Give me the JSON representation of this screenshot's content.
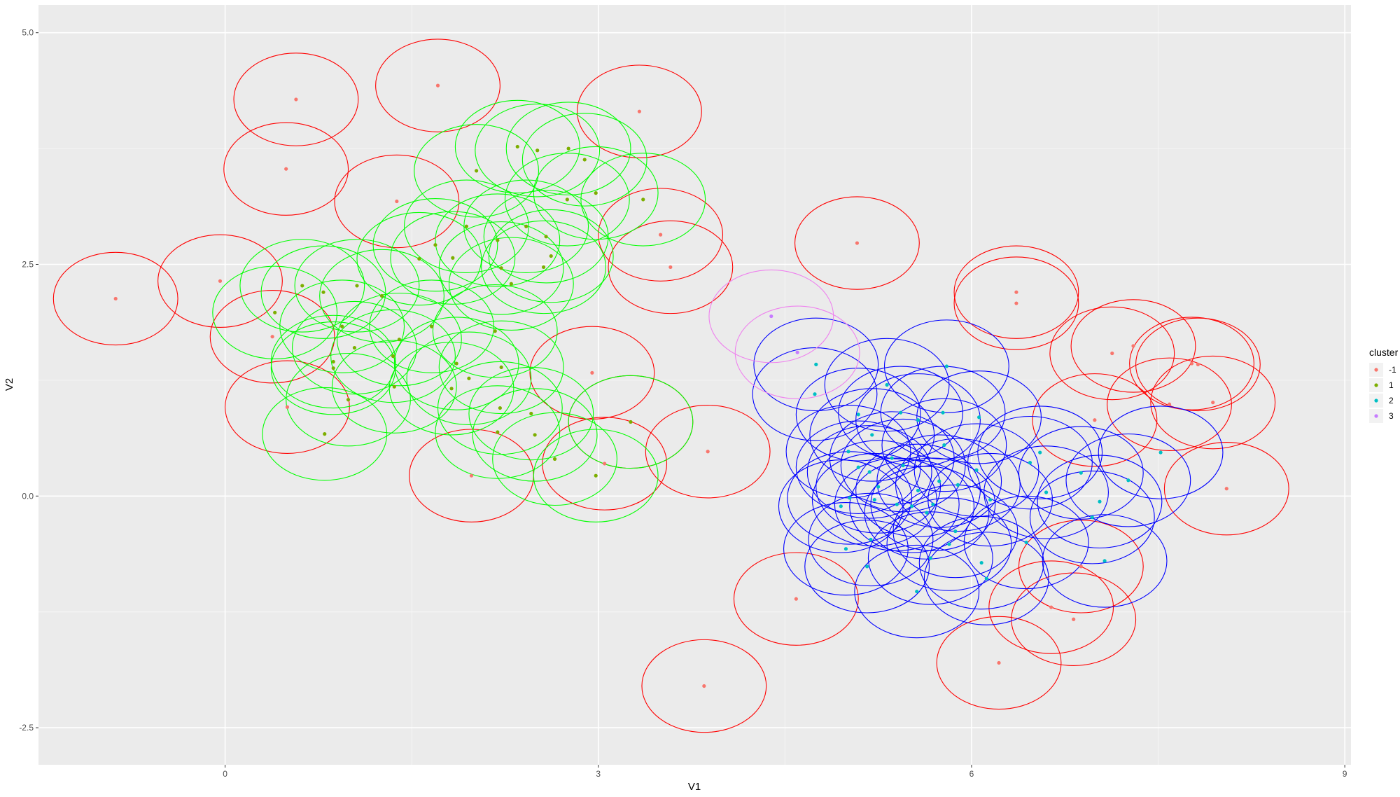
{
  "chart_data": {
    "type": "scatter",
    "title": "",
    "xlabel": "V1",
    "ylabel": "V2",
    "xlim": [
      -1.5,
      9.05
    ],
    "ylim": [
      -2.9,
      5.3
    ],
    "x_ticks": [
      0,
      3,
      6,
      9
    ],
    "x_tick_labels": [
      "0",
      "3",
      "6",
      "9"
    ],
    "y_ticks": [
      -2.5,
      0,
      2.5,
      5
    ],
    "y_tick_labels": [
      "-2.5",
      "0.0",
      "2.5",
      "5.0"
    ],
    "grid": true,
    "legend_position": "right",
    "legend_title": "cluster",
    "circle_radius_x": 0.5,
    "circle_radius_y": 0.5,
    "series": [
      {
        "name": "-1",
        "point_color": "#F8766D",
        "circle_color": "#FF0000",
        "points": [
          [
            -0.88,
            2.13
          ],
          [
            -0.04,
            2.32
          ],
          [
            0.57,
            4.28
          ],
          [
            0.49,
            3.53
          ],
          [
            1.71,
            4.43
          ],
          [
            1.38,
            3.18
          ],
          [
            3.33,
            4.15
          ],
          [
            0.38,
            1.72
          ],
          [
            0.5,
            0.96
          ],
          [
            3.5,
            2.82
          ],
          [
            3.58,
            2.47
          ],
          [
            2.95,
            1.33
          ],
          [
            3.26,
            0.8
          ],
          [
            3.05,
            0.35
          ],
          [
            1.98,
            0.22
          ],
          [
            3.88,
            0.48
          ],
          [
            5.08,
            2.73
          ],
          [
            6.36,
            2.2
          ],
          [
            6.36,
            2.08
          ],
          [
            7.13,
            1.54
          ],
          [
            7.3,
            1.62
          ],
          [
            7.82,
            1.42
          ],
          [
            7.77,
            1.43
          ],
          [
            7.59,
            0.99
          ],
          [
            7.94,
            1.01
          ],
          [
            6.99,
            0.82
          ],
          [
            8.05,
            0.08
          ],
          [
            4.59,
            -1.11
          ],
          [
            6.88,
            -0.76
          ],
          [
            6.64,
            -1.2
          ],
          [
            6.82,
            -1.33
          ],
          [
            6.22,
            -1.8
          ],
          [
            3.85,
            -2.05
          ]
        ]
      },
      {
        "name": "1",
        "point_color": "#7CAE00",
        "circle_color": "#00FF00",
        "points": [
          [
            2.35,
            3.77
          ],
          [
            2.51,
            3.73
          ],
          [
            2.76,
            3.75
          ],
          [
            2.89,
            3.63
          ],
          [
            2.02,
            3.51
          ],
          [
            2.98,
            3.27
          ],
          [
            2.75,
            3.2
          ],
          [
            3.36,
            3.2
          ],
          [
            1.94,
            2.91
          ],
          [
            2.42,
            2.91
          ],
          [
            2.19,
            2.76
          ],
          [
            2.58,
            2.8
          ],
          [
            1.69,
            2.71
          ],
          [
            1.56,
            2.56
          ],
          [
            1.83,
            2.57
          ],
          [
            2.62,
            2.59
          ],
          [
            2.56,
            2.47
          ],
          [
            2.22,
            2.46
          ],
          [
            2.3,
            2.29
          ],
          [
            0.62,
            2.27
          ],
          [
            1.06,
            2.27
          ],
          [
            0.79,
            2.2
          ],
          [
            1.26,
            2.16
          ],
          [
            0.4,
            1.98
          ],
          [
            0.94,
            1.83
          ],
          [
            1.66,
            1.83
          ],
          [
            2.17,
            1.78
          ],
          [
            1.4,
            1.69
          ],
          [
            0.87,
            1.45
          ],
          [
            1.04,
            1.6
          ],
          [
            1.35,
            1.51
          ],
          [
            1.86,
            1.43
          ],
          [
            0.87,
            1.38
          ],
          [
            2.22,
            1.39
          ],
          [
            1.96,
            1.27
          ],
          [
            1.36,
            1.18
          ],
          [
            1.82,
            1.16
          ],
          [
            0.99,
            1.04
          ],
          [
            2.21,
            0.95
          ],
          [
            2.46,
            0.89
          ],
          [
            2.49,
            0.66
          ],
          [
            2.19,
            0.69
          ],
          [
            0.8,
            0.67
          ],
          [
            2.65,
            0.4
          ],
          [
            2.98,
            0.22
          ],
          [
            3.26,
            0.8
          ]
        ]
      },
      {
        "name": "2",
        "point_color": "#00BFC4",
        "circle_color": "#0000FF",
        "points": [
          [
            4.75,
            1.42
          ],
          [
            5.8,
            1.4
          ],
          [
            4.74,
            1.1
          ],
          [
            5.32,
            1.2
          ],
          [
            5.09,
            0.88
          ],
          [
            5.43,
            0.9
          ],
          [
            5.77,
            0.9
          ],
          [
            6.06,
            0.85
          ],
          [
            5.57,
            0.82
          ],
          [
            5.2,
            0.66
          ],
          [
            5.78,
            0.55
          ],
          [
            5.01,
            0.48
          ],
          [
            6.55,
            0.47
          ],
          [
            7.52,
            0.47
          ],
          [
            5.36,
            0.41
          ],
          [
            6.47,
            0.36
          ],
          [
            5.45,
            0.33
          ],
          [
            6.04,
            0.28
          ],
          [
            5.09,
            0.31
          ],
          [
            6.88,
            0.25
          ],
          [
            5.18,
            0.26
          ],
          [
            5.74,
            0.16
          ],
          [
            7.26,
            0.17
          ],
          [
            5.25,
            0.1
          ],
          [
            5.89,
            0.12
          ],
          [
            5.57,
            0.06
          ],
          [
            6.6,
            0.04
          ],
          [
            5.02,
            -0.02
          ],
          [
            5.4,
            -0.09
          ],
          [
            5.69,
            -0.09
          ],
          [
            4.95,
            -0.11
          ],
          [
            5.22,
            -0.04
          ],
          [
            6.15,
            -0.04
          ],
          [
            7.03,
            -0.06
          ],
          [
            5.52,
            -0.11
          ],
          [
            5.64,
            -0.18
          ],
          [
            6.97,
            -0.23
          ],
          [
            5.87,
            -0.38
          ],
          [
            5.19,
            -0.47
          ],
          [
            5.82,
            -0.52
          ],
          [
            6.44,
            -0.5
          ],
          [
            4.99,
            -0.57
          ],
          [
            5.67,
            -0.67
          ],
          [
            6.08,
            -0.72
          ],
          [
            7.07,
            -0.7
          ],
          [
            5.16,
            -0.76
          ],
          [
            6.12,
            -0.89
          ],
          [
            5.56,
            -1.03
          ]
        ]
      },
      {
        "name": "3",
        "point_color": "#C77CFF",
        "circle_color": "#EE82EE",
        "points": [
          [
            4.39,
            1.94
          ],
          [
            4.6,
            1.55
          ]
        ]
      }
    ]
  }
}
